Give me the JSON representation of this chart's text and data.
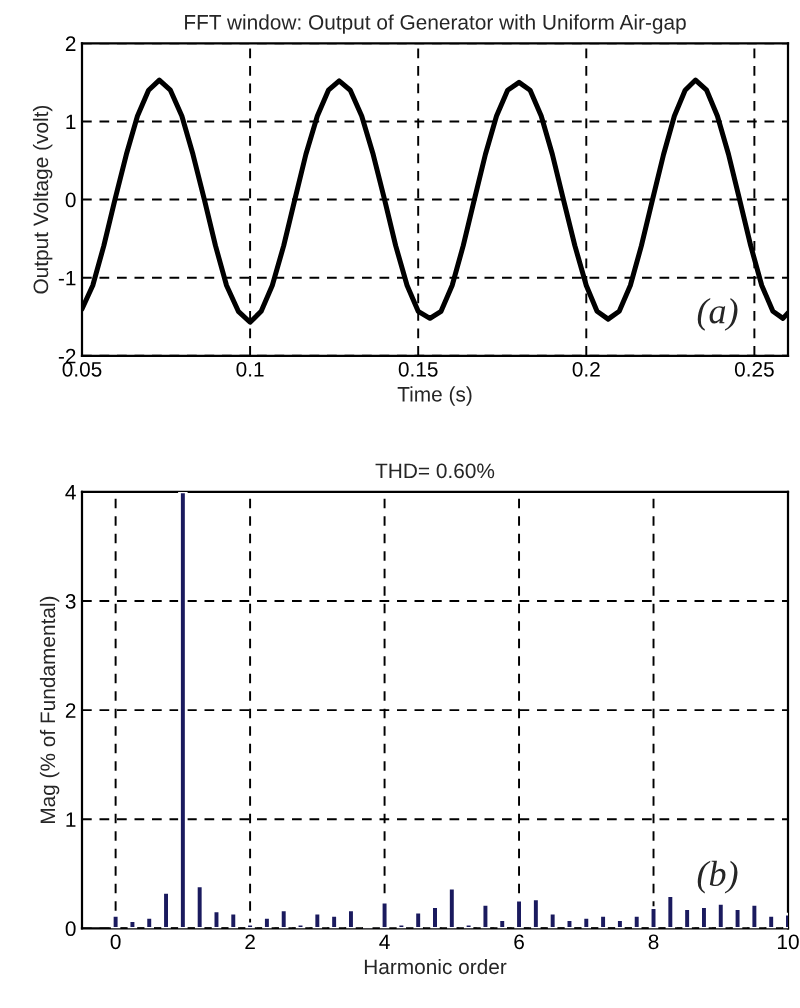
{
  "chart_data": [
    {
      "type": "line",
      "title": "FFT window: Output of Generator with Uniform Air-gap",
      "xlabel": "Time (s)",
      "ylabel": "Output Voltage (volt)",
      "annotations": [
        "(a)"
      ],
      "grid": true,
      "marker": "none",
      "line_style": "solid",
      "xlim": [
        0.05,
        0.26
      ],
      "xticks": [
        0.05,
        0.1,
        0.15,
        0.2,
        0.25
      ],
      "ylim": [
        -2,
        2
      ],
      "yticks": [
        -2,
        -1,
        0,
        1,
        2
      ],
      "x": [
        0.05,
        0.0532,
        0.0565,
        0.0598,
        0.0632,
        0.0665,
        0.0698,
        0.073,
        0.0763,
        0.0797,
        0.083,
        0.0864,
        0.0897,
        0.093,
        0.0965,
        0.1,
        0.1033,
        0.1066,
        0.11,
        0.1133,
        0.1166,
        0.12,
        0.1233,
        0.1265,
        0.1298,
        0.1332,
        0.1366,
        0.14,
        0.1433,
        0.1467,
        0.15,
        0.1535,
        0.1568,
        0.1601,
        0.1634,
        0.1667,
        0.17,
        0.1733,
        0.1766,
        0.18,
        0.1833,
        0.1866,
        0.1899,
        0.1932,
        0.1966,
        0.2,
        0.2032,
        0.2065,
        0.2098,
        0.2131,
        0.2164,
        0.2197,
        0.223,
        0.2262,
        0.2294,
        0.2325,
        0.2358,
        0.239,
        0.2423,
        0.2456,
        0.2489,
        0.2522,
        0.2555,
        0.2585,
        0.26
      ],
      "series": [
        {
          "color": "#000000",
          "values": [
            -1.4,
            -1.1,
            -0.59,
            0,
            0.58,
            1.07,
            1.4,
            1.53,
            1.4,
            1.07,
            0.58,
            0,
            -0.59,
            -1.1,
            -1.43,
            -1.57,
            -1.43,
            -1.1,
            -0.59,
            0,
            0.58,
            1.07,
            1.4,
            1.52,
            1.4,
            1.07,
            0.58,
            0,
            -0.59,
            -1.1,
            -1.43,
            -1.52,
            -1.43,
            -1.1,
            -0.59,
            0,
            0.58,
            1.07,
            1.4,
            1.5,
            1.4,
            1.07,
            0.58,
            0,
            -0.59,
            -1.1,
            -1.43,
            -1.53,
            -1.43,
            -1.1,
            -0.59,
            0,
            0.58,
            1.07,
            1.4,
            1.53,
            1.4,
            1.07,
            0.58,
            0,
            -0.59,
            -1.1,
            -1.43,
            -1.52,
            -1.45
          ]
        }
      ]
    },
    {
      "type": "bar",
      "title": "THD= 0.60%",
      "xlabel": "Harmonic order",
      "ylabel": "Mag (% of Fundamental)",
      "annotations": [
        "(b)"
      ],
      "grid": true,
      "xlim": [
        -0.5,
        10
      ],
      "xticks": [
        0,
        2,
        4,
        6,
        8,
        10
      ],
      "ylim": [
        0,
        4
      ],
      "yticks": [
        0,
        1,
        2,
        3,
        4
      ],
      "x": [
        0,
        0.25,
        0.5,
        0.75,
        1,
        1.25,
        1.5,
        1.75,
        2,
        2.25,
        2.5,
        2.75,
        3,
        3.25,
        3.5,
        3.75,
        4,
        4.25,
        4.5,
        4.75,
        5,
        5.25,
        5.5,
        5.75,
        6,
        6.25,
        6.5,
        6.75,
        7,
        7.25,
        7.5,
        7.75,
        8,
        8.25,
        8.5,
        8.75,
        9,
        9.25,
        9.5,
        9.75,
        10
      ],
      "series": [
        {
          "color": "#1a1a5e",
          "values": [
            0.12,
            0.07,
            0.1,
            0.33,
            4,
            0.39,
            0.16,
            0.14,
            0.04,
            0.1,
            0.17,
            0.04,
            0.14,
            0.12,
            0.17,
            0.02,
            0.24,
            0.04,
            0.15,
            0.2,
            0.37,
            0.04,
            0.22,
            0.08,
            0.26,
            0.27,
            0.14,
            0.08,
            0.1,
            0.12,
            0.08,
            0.12,
            0.19,
            0.3,
            0.18,
            0.2,
            0.23,
            0.18,
            0.22,
            0.12,
            0.13
          ]
        }
      ]
    }
  ]
}
